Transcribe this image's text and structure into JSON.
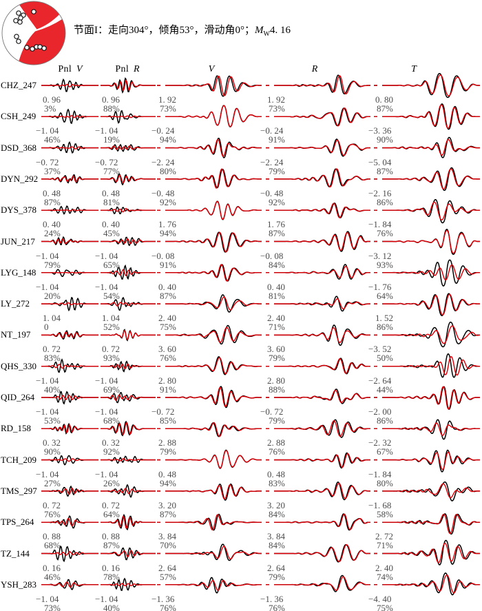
{
  "title": {
    "prefix": "节面I：走向304°，倾角53°，滑动角0°；",
    "mw": "M",
    "mw_sub": "W",
    "mw_value": "4. 16"
  },
  "beachball": {
    "fill_red": "#e8262c",
    "station_circles": [
      [
        27,
        19
      ],
      [
        34,
        22
      ],
      [
        30,
        26
      ],
      [
        23,
        30
      ],
      [
        29,
        32
      ],
      [
        49,
        17
      ],
      [
        24,
        53
      ],
      [
        27,
        60
      ],
      [
        39,
        69
      ],
      [
        47,
        71
      ],
      [
        53,
        68
      ],
      [
        58,
        68
      ],
      [
        64,
        70
      ]
    ]
  },
  "columns": [
    {
      "plain": "Pnl",
      "italic": "V"
    },
    {
      "plain": "Pnl",
      "italic": "R"
    },
    {
      "plain": "",
      "italic": "V"
    },
    {
      "plain": "",
      "italic": "R"
    },
    {
      "plain": "",
      "italic": "T"
    }
  ],
  "chart_data": {
    "type": "line",
    "subtype": "seismic-waveform-fit",
    "description": "Observed (black) vs synthetic (red) seismograms per station and component; each cell lists time shift (s) and cross-correlation (%)",
    "components": [
      "Pnl V",
      "Pnl R",
      "V",
      "R",
      "T"
    ],
    "trace_colors": {
      "observed": "#000000",
      "synthetic": "#e00008"
    },
    "stations": [
      {
        "name": "CHZ_247",
        "cells": [
          {
            "shift": 0.96,
            "fit": "3%"
          },
          {
            "shift": 0.96,
            "fit": "88%"
          },
          {
            "shift": 1.92,
            "fit": "73%"
          },
          {
            "shift": 1.92,
            "fit": "73%"
          },
          {
            "shift": 0.8,
            "fit": "87%"
          }
        ]
      },
      {
        "name": "CSH_249",
        "cells": [
          {
            "shift": -1.04,
            "fit": "46%"
          },
          {
            "shift": -1.04,
            "fit": "19%"
          },
          {
            "shift": -0.24,
            "fit": "94%"
          },
          {
            "shift": -0.24,
            "fit": "91%"
          },
          {
            "shift": -3.36,
            "fit": "90%"
          }
        ]
      },
      {
        "name": "DSD_368",
        "cells": [
          {
            "shift": -0.72,
            "fit": "37%"
          },
          {
            "shift": -0.72,
            "fit": "77%"
          },
          {
            "shift": -2.24,
            "fit": "80%"
          },
          {
            "shift": -2.24,
            "fit": "79%"
          },
          {
            "shift": -5.04,
            "fit": "87%"
          }
        ]
      },
      {
        "name": "DYN_292",
        "cells": [
          {
            "shift": 0.48,
            "fit": "87%"
          },
          {
            "shift": 0.48,
            "fit": "81%"
          },
          {
            "shift": -0.48,
            "fit": "92%"
          },
          {
            "shift": -0.48,
            "fit": "92%"
          },
          {
            "shift": -2.16,
            "fit": "86%"
          }
        ]
      },
      {
        "name": "DYS_378",
        "cells": [
          {
            "shift": 0.4,
            "fit": "24%"
          },
          {
            "shift": 0.4,
            "fit": "45%"
          },
          {
            "shift": 1.76,
            "fit": "94%"
          },
          {
            "shift": 1.76,
            "fit": "87%"
          },
          {
            "shift": -1.84,
            "fit": "76%"
          }
        ]
      },
      {
        "name": "JUN_217",
        "cells": [
          {
            "shift": -1.04,
            "fit": "79%"
          },
          {
            "shift": -1.04,
            "fit": "65%"
          },
          {
            "shift": -0.08,
            "fit": "91%"
          },
          {
            "shift": -0.08,
            "fit": "84%"
          },
          {
            "shift": -3.12,
            "fit": "93%"
          }
        ]
      },
      {
        "name": "LYG_148",
        "cells": [
          {
            "shift": -1.04,
            "fit": "20%"
          },
          {
            "shift": -1.04,
            "fit": "54%"
          },
          {
            "shift": 0.4,
            "fit": "87%"
          },
          {
            "shift": 0.4,
            "fit": "81%"
          },
          {
            "shift": -1.76,
            "fit": "64%"
          }
        ]
      },
      {
        "name": "LY_272",
        "cells": [
          {
            "shift": 1.04,
            "fit": "0"
          },
          {
            "shift": 1.04,
            "fit": "52%"
          },
          {
            "shift": 2.4,
            "fit": "75%"
          },
          {
            "shift": 2.4,
            "fit": "71%"
          },
          {
            "shift": 1.52,
            "fit": "86%"
          }
        ]
      },
      {
        "name": "NT_197",
        "cells": [
          {
            "shift": 0.72,
            "fit": "83%"
          },
          {
            "shift": 0.72,
            "fit": "93%"
          },
          {
            "shift": 3.6,
            "fit": "76%"
          },
          {
            "shift": 3.6,
            "fit": "79%"
          },
          {
            "shift": -3.52,
            "fit": "50%"
          }
        ]
      },
      {
        "name": "QHS_330",
        "cells": [
          {
            "shift": -1.04,
            "fit": "40%"
          },
          {
            "shift": -1.04,
            "fit": "69%"
          },
          {
            "shift": 2.8,
            "fit": "91%"
          },
          {
            "shift": 2.8,
            "fit": "88%"
          },
          {
            "shift": -2.64,
            "fit": "44%"
          }
        ]
      },
      {
        "name": "QID_264",
        "cells": [
          {
            "shift": -1.04,
            "fit": "53%"
          },
          {
            "shift": -1.04,
            "fit": "68%"
          },
          {
            "shift": -0.72,
            "fit": "85%"
          },
          {
            "shift": -0.72,
            "fit": "79%"
          },
          {
            "shift": -2.0,
            "fit": "86%"
          }
        ]
      },
      {
        "name": "RD_158",
        "cells": [
          {
            "shift": 0.32,
            "fit": "90%"
          },
          {
            "shift": 0.32,
            "fit": "92%"
          },
          {
            "shift": 2.88,
            "fit": "79%"
          },
          {
            "shift": 2.88,
            "fit": "76%"
          },
          {
            "shift": -2.32,
            "fit": "67%"
          }
        ]
      },
      {
        "name": "TCH_209",
        "cells": [
          {
            "shift": -1.04,
            "fit": "27%"
          },
          {
            "shift": -1.04,
            "fit": "26%"
          },
          {
            "shift": 0.48,
            "fit": "94%"
          },
          {
            "shift": 0.48,
            "fit": "83%"
          },
          {
            "shift": -1.84,
            "fit": "80%"
          }
        ]
      },
      {
        "name": "TMS_297",
        "cells": [
          {
            "shift": 0.72,
            "fit": "76%"
          },
          {
            "shift": 0.72,
            "fit": "64%"
          },
          {
            "shift": 3.2,
            "fit": "87%"
          },
          {
            "shift": 3.2,
            "fit": "84%"
          },
          {
            "shift": -1.68,
            "fit": "58%"
          }
        ]
      },
      {
        "name": "TPS_264",
        "cells": [
          {
            "shift": 0.88,
            "fit": "68%"
          },
          {
            "shift": 0.88,
            "fit": "87%"
          },
          {
            "shift": 3.84,
            "fit": "70%"
          },
          {
            "shift": 3.84,
            "fit": "84%"
          },
          {
            "shift": 2.72,
            "fit": "71%"
          }
        ]
      },
      {
        "name": "TZ_144",
        "cells": [
          {
            "shift": 0.16,
            "fit": "46%"
          },
          {
            "shift": 0.16,
            "fit": "78%"
          },
          {
            "shift": 2.64,
            "fit": "57%"
          },
          {
            "shift": 2.64,
            "fit": "79%"
          },
          {
            "shift": 2.4,
            "fit": "74%"
          }
        ]
      },
      {
        "name": "YSH_283",
        "cells": [
          {
            "shift": -1.04,
            "fit": "73%"
          },
          {
            "shift": -1.04,
            "fit": "40%"
          },
          {
            "shift": -1.36,
            "fit": "76%"
          },
          {
            "shift": -1.36,
            "fit": "76%"
          },
          {
            "shift": -4.4,
            "fit": "75%"
          }
        ]
      }
    ]
  }
}
